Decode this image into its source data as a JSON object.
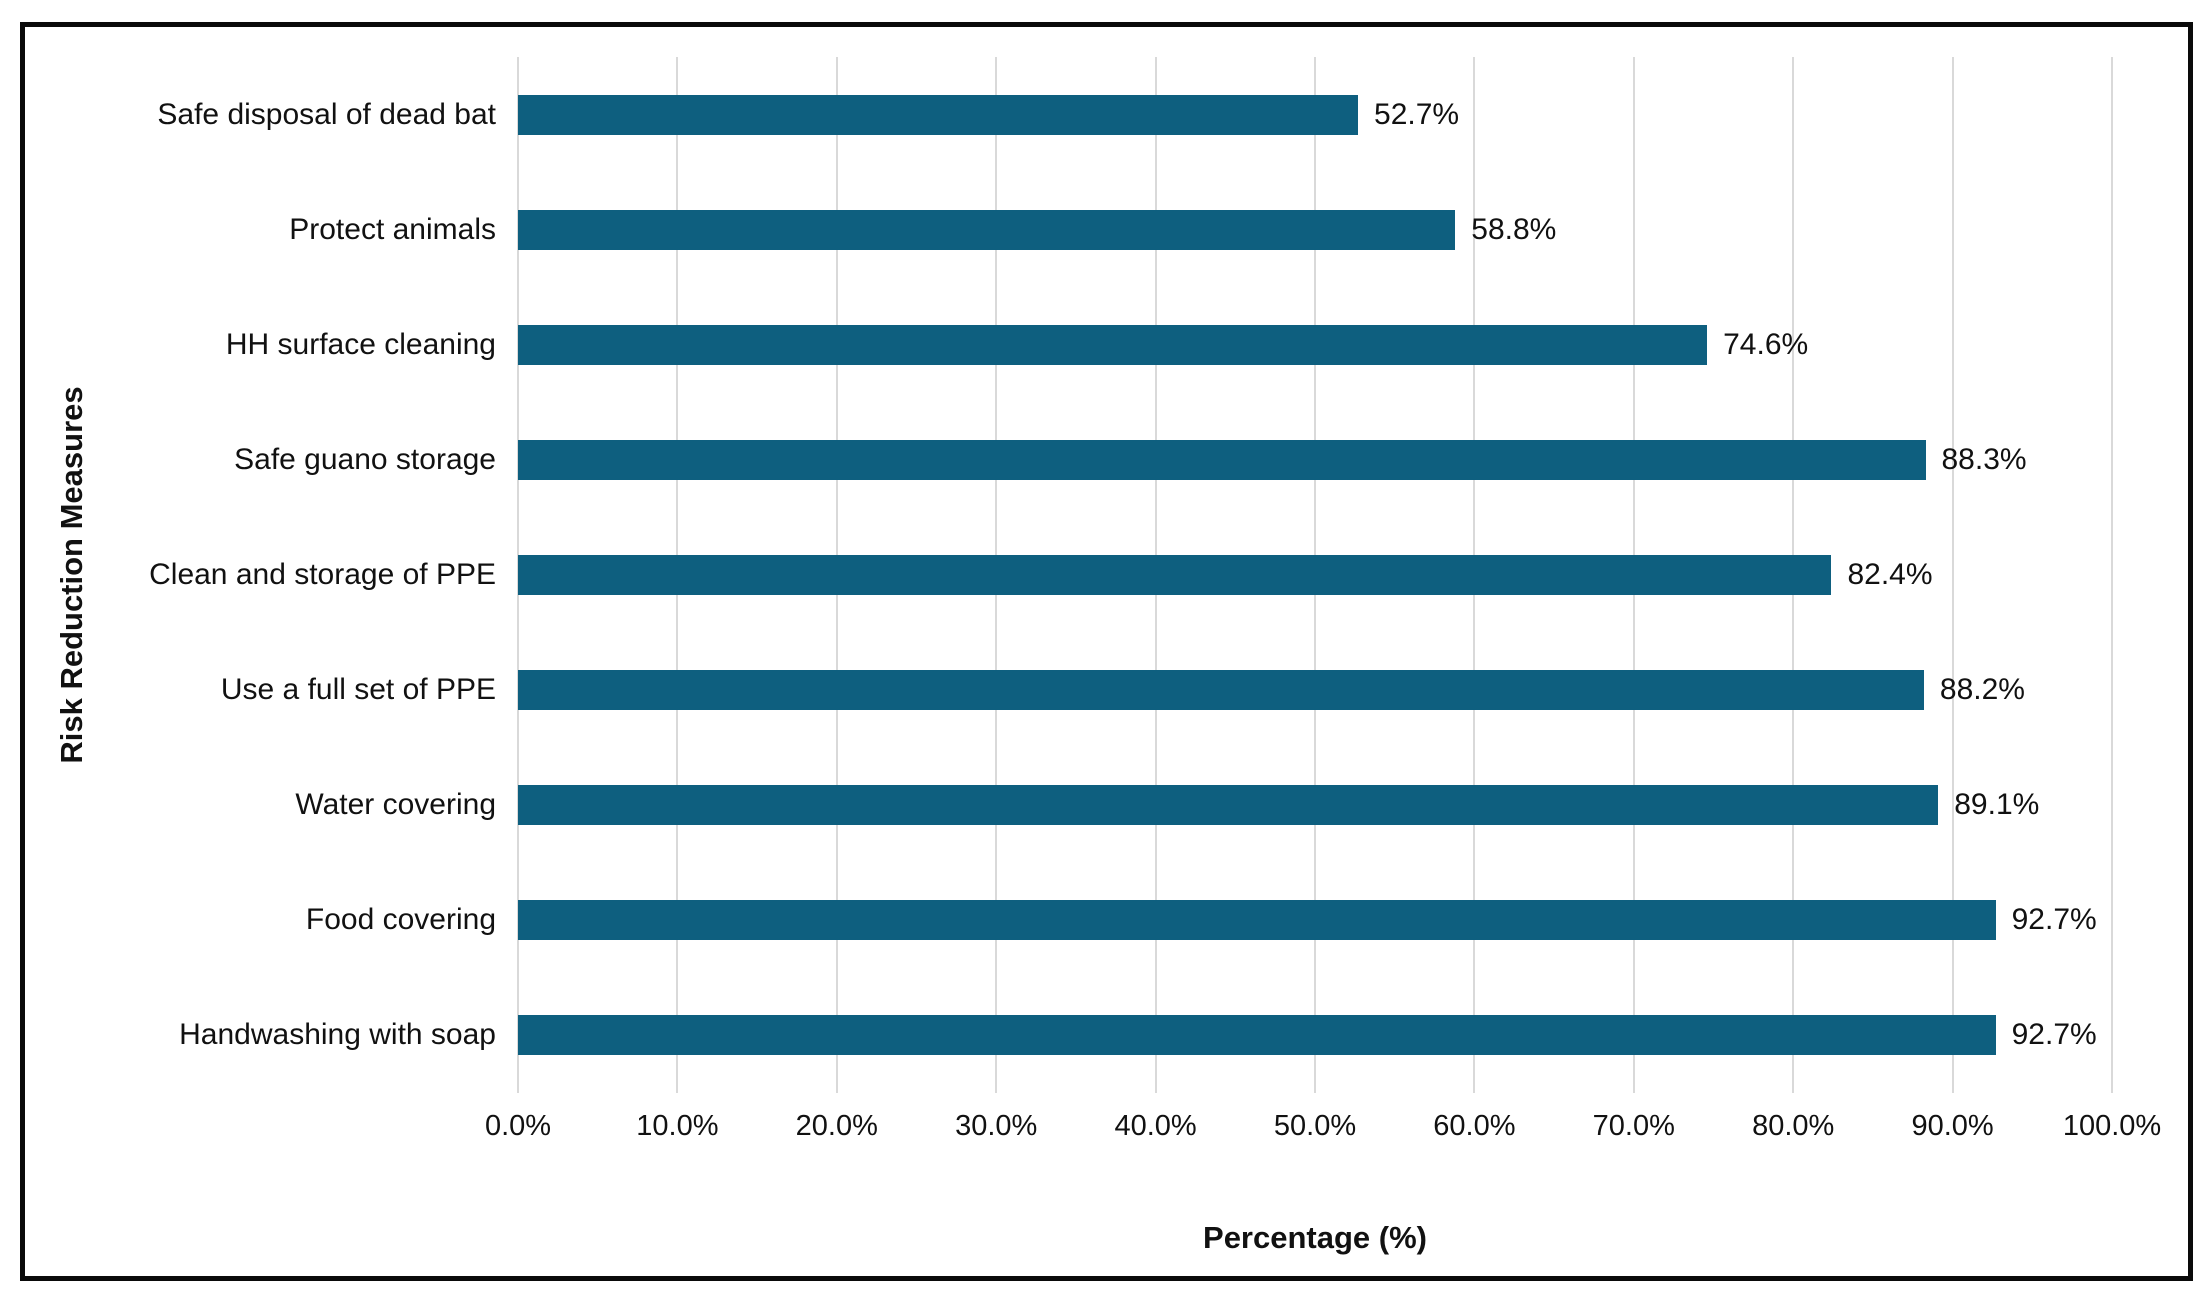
{
  "chart_data": {
    "type": "bar",
    "orientation": "horizontal",
    "title": "",
    "xlabel": "Percentage (%)",
    "ylabel": "Risk Reduction Measures",
    "categories": [
      "Safe disposal of dead bat",
      "Protect animals",
      "HH surface cleaning",
      "Safe guano storage",
      "Clean and storage of PPE",
      "Use a full set of PPE",
      "Water covering",
      "Food covering",
      "Handwashing with soap"
    ],
    "values": [
      52.7,
      58.8,
      74.6,
      88.3,
      82.4,
      88.2,
      89.1,
      92.7,
      92.7
    ],
    "value_labels": [
      "52.7%",
      "58.8%",
      "74.6%",
      "88.3%",
      "82.4%",
      "88.2%",
      "89.1%",
      "92.7%",
      "92.7%"
    ],
    "xlim": [
      0,
      100
    ],
    "xtick_values": [
      0,
      10,
      20,
      30,
      40,
      50,
      60,
      70,
      80,
      90,
      100
    ],
    "xticks": [
      "0.0%",
      "10.0%",
      "20.0%",
      "30.0%",
      "40.0%",
      "50.0%",
      "60.0%",
      "70.0%",
      "80.0%",
      "90.0%",
      "100.0%"
    ],
    "grid": "vertical",
    "legend": "none",
    "colors": {
      "bar": "#0E5F7F",
      "gridline": "#D9D9D9",
      "text": "#111111",
      "frame_border": "#0A0A0A",
      "background": "#FFFFFF"
    }
  }
}
